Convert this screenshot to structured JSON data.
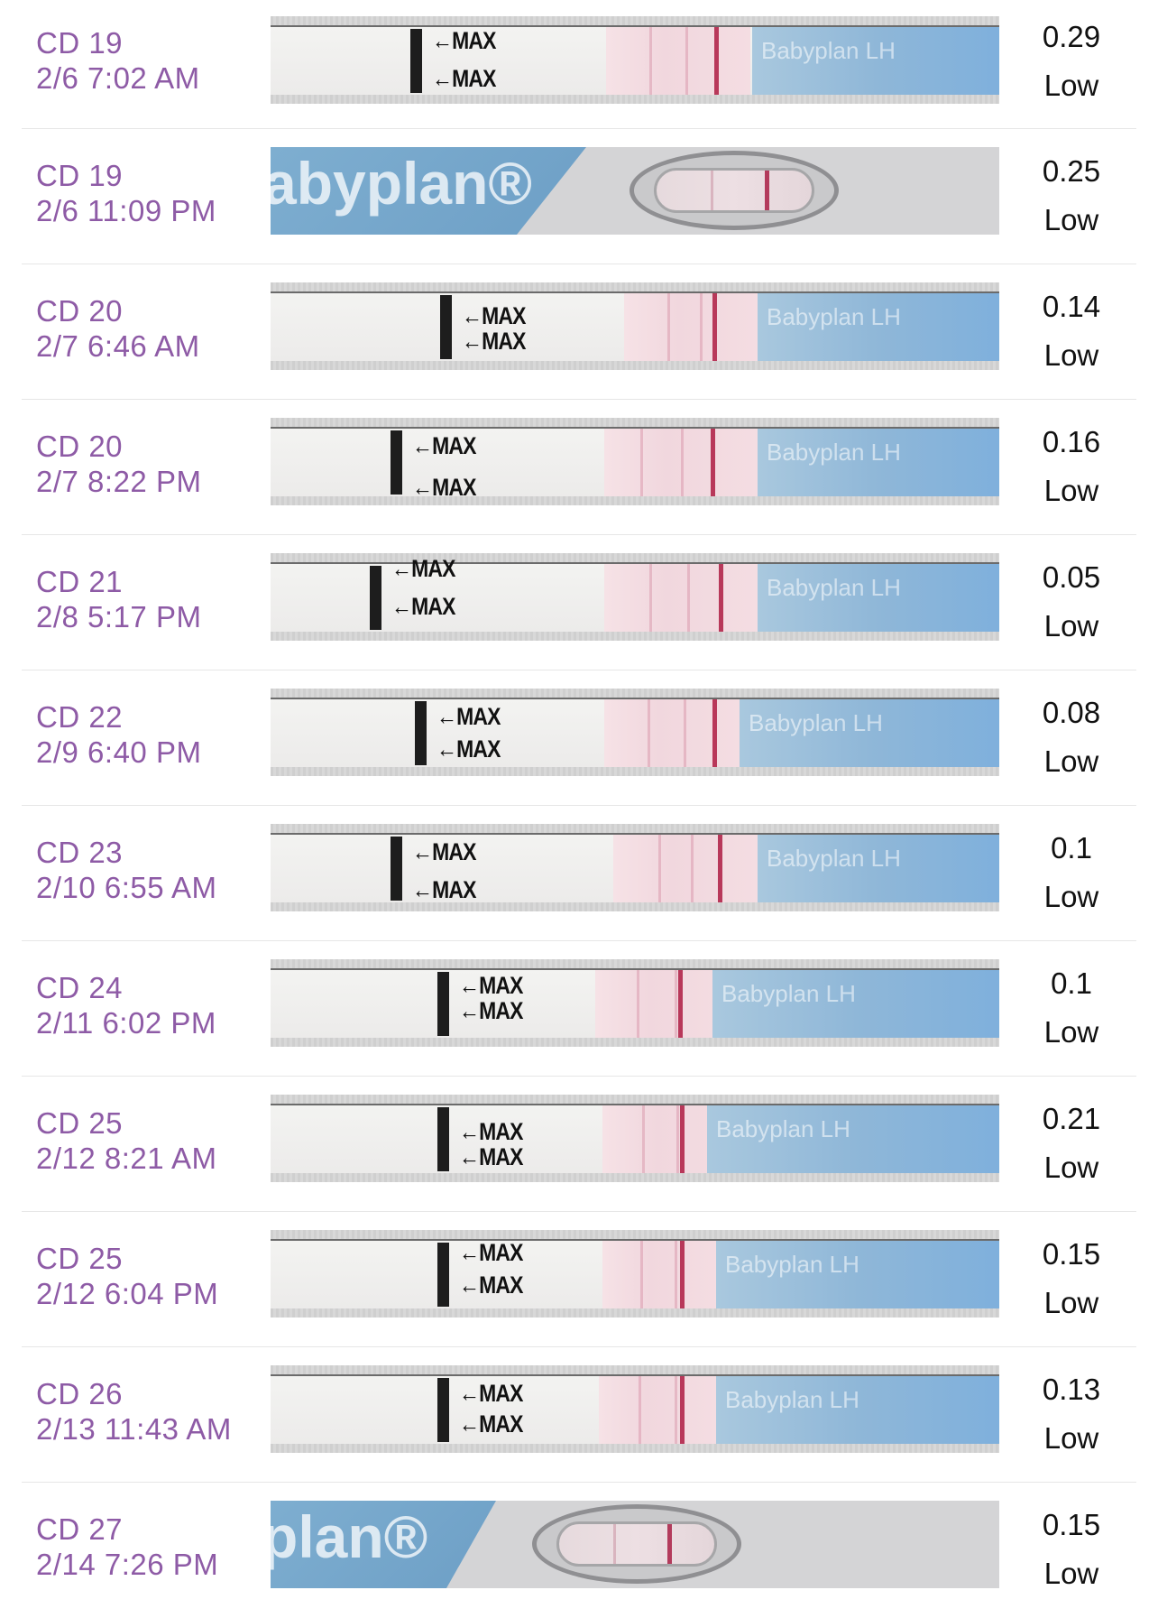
{
  "entries": [
    {
      "cycle_day": "CD 19",
      "datetime": "2/6 7:02 AM",
      "value": "0.29",
      "level": "Low",
      "strip_type": "strip"
    },
    {
      "cycle_day": "CD 19",
      "datetime": "2/6 11:09 PM",
      "value": "0.25",
      "level": "Low",
      "strip_type": "cassette",
      "brand_text": "abyplan®"
    },
    {
      "cycle_day": "CD 20",
      "datetime": "2/7 6:46 AM",
      "value": "0.14",
      "level": "Low",
      "strip_type": "strip"
    },
    {
      "cycle_day": "CD 20",
      "datetime": "2/7 8:22 PM",
      "value": "0.16",
      "level": "Low",
      "strip_type": "strip"
    },
    {
      "cycle_day": "CD 21",
      "datetime": "2/8 5:17 PM",
      "value": "0.05",
      "level": "Low",
      "strip_type": "strip"
    },
    {
      "cycle_day": "CD 22",
      "datetime": "2/9 6:40 PM",
      "value": "0.08",
      "level": "Low",
      "strip_type": "strip"
    },
    {
      "cycle_day": "CD 23",
      "datetime": "2/10 6:55 AM",
      "value": "0.1",
      "level": "Low",
      "strip_type": "strip"
    },
    {
      "cycle_day": "CD 24",
      "datetime": "2/11 6:02 PM",
      "value": "0.1",
      "level": "Low",
      "strip_type": "strip"
    },
    {
      "cycle_day": "CD 25",
      "datetime": "2/12 8:21 AM",
      "value": "0.21",
      "level": "Low",
      "strip_type": "strip"
    },
    {
      "cycle_day": "CD 25",
      "datetime": "2/12 6:04 PM",
      "value": "0.15",
      "level": "Low",
      "strip_type": "strip"
    },
    {
      "cycle_day": "CD 26",
      "datetime": "2/13 11:43 AM",
      "value": "0.13",
      "level": "Low",
      "strip_type": "strip"
    },
    {
      "cycle_day": "CD 27",
      "datetime": "2/14 7:26 PM",
      "value": "0.15",
      "level": "Low",
      "strip_type": "cassette",
      "brand_text": "plan®"
    }
  ],
  "strip_labels": {
    "max": "←MAX",
    "brand": "Babyplan LH"
  },
  "colors": {
    "meta_text": "#8e5ba6",
    "test_line": "#b8385a",
    "strip_blue": "#8fb7d8"
  }
}
